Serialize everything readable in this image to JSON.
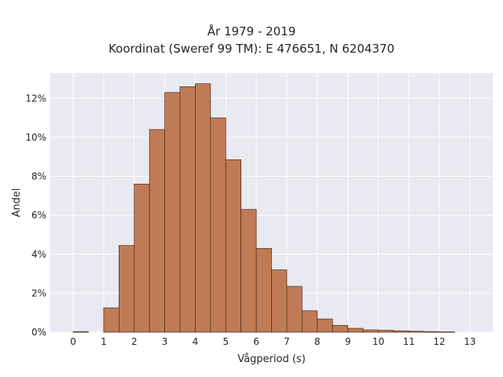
{
  "chart_data": {
    "type": "bar",
    "title": "År 1979 - 2019",
    "subtitle": "Koordinat (Sweref 99 TM): E 476651, N 6204370",
    "xlabel": "Vågperiod (s)",
    "ylabel": "Andel",
    "xlim": [
      -0.75,
      13.75
    ],
    "ylim": [
      0,
      13.3
    ],
    "grid": true,
    "x_ticks": [
      0,
      1,
      2,
      3,
      4,
      5,
      6,
      7,
      8,
      9,
      10,
      11,
      12,
      13
    ],
    "y_ticks": [
      0,
      2,
      4,
      6,
      8,
      10,
      12
    ],
    "y_tick_labels": [
      "0%",
      "2%",
      "4%",
      "6%",
      "8%",
      "10%",
      "12%"
    ],
    "bin_width": 0.5,
    "bin_starts": [
      0,
      0.5,
      1,
      1.5,
      2,
      2.5,
      3,
      3.5,
      4,
      4.5,
      5,
      5.5,
      6,
      6.5,
      7,
      7.5,
      8,
      8.5,
      9,
      9.5,
      10,
      10.5,
      11,
      11.5,
      12,
      12.5
    ],
    "values": [
      0.03,
      0,
      1.25,
      4.45,
      7.6,
      10.4,
      12.3,
      12.6,
      12.75,
      11.0,
      8.85,
      6.3,
      4.3,
      3.2,
      2.35,
      1.1,
      0.68,
      0.35,
      0.2,
      0.12,
      0.1,
      0.07,
      0.05,
      0.03,
      0.02,
      0
    ],
    "colors": {
      "bar_fill": "#c07b56",
      "bar_edge": "#4a2a1a",
      "plot_bg": "#e9e9f1",
      "grid": "#ffffff",
      "text": "#262626"
    }
  }
}
